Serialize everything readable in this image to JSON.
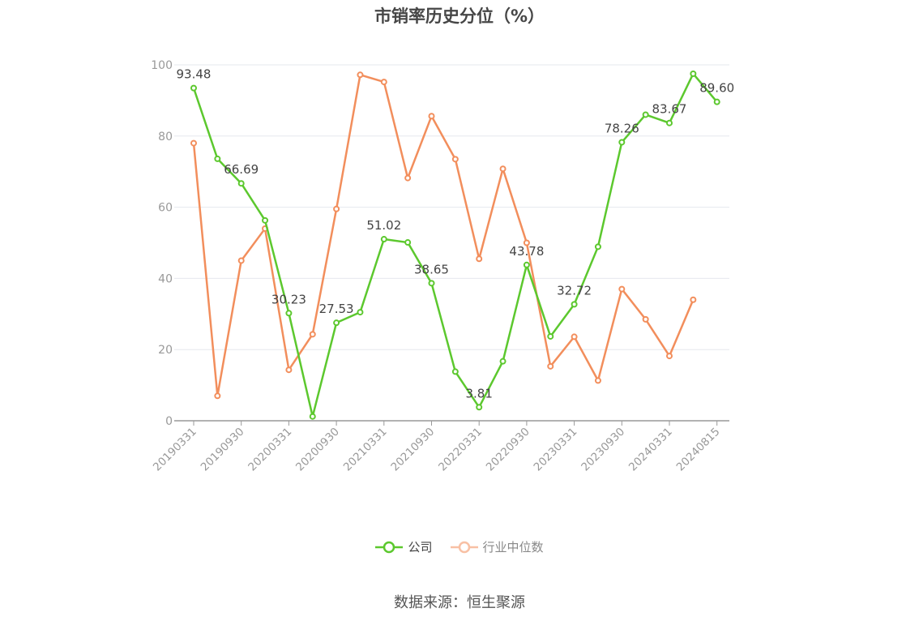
{
  "chart_data": {
    "type": "line",
    "title": "市销率历史分位（%）",
    "ylim": [
      0,
      100
    ],
    "yticks": [
      0,
      20,
      40,
      60,
      80,
      100
    ],
    "x_tick_labels": [
      "20190331",
      "20190930",
      "20200331",
      "20200930",
      "20210331",
      "20210930",
      "20220331",
      "20220930",
      "20230331",
      "20230930",
      "20240331",
      "20240815"
    ],
    "series": [
      {
        "name": "公司",
        "color": "#5cc82e",
        "values": [
          93.48,
          73.6,
          66.69,
          56.3,
          30.23,
          1.2,
          27.53,
          30.5,
          51.02,
          50.1,
          38.65,
          13.8,
          3.81,
          16.7,
          43.78,
          23.7,
          32.72,
          48.9,
          78.26,
          86.0,
          83.67,
          97.5,
          89.6
        ],
        "data_labels": [
          {
            "index": 0,
            "text": "93.48"
          },
          {
            "index": 2,
            "text": "66.69"
          },
          {
            "index": 4,
            "text": "30.23"
          },
          {
            "index": 6,
            "text": "27.53"
          },
          {
            "index": 8,
            "text": "51.02"
          },
          {
            "index": 10,
            "text": "38.65"
          },
          {
            "index": 12,
            "text": "3.81"
          },
          {
            "index": 14,
            "text": "43.78"
          },
          {
            "index": 16,
            "text": "32.72"
          },
          {
            "index": 18,
            "text": "78.26"
          },
          {
            "index": 20,
            "text": "83.67"
          },
          {
            "index": 22,
            "text": "89.60"
          }
        ]
      },
      {
        "name": "行业中位数",
        "color": "#f28e5c",
        "values": [
          78.0,
          7.0,
          45.0,
          54.0,
          14.3,
          24.3,
          59.5,
          97.2,
          95.2,
          68.2,
          85.6,
          73.5,
          45.5,
          70.8,
          50.0,
          15.3,
          23.6,
          11.3,
          37.0,
          28.5,
          18.2,
          34.0,
          null
        ]
      }
    ],
    "grid": true,
    "legend_position": "bottom-center"
  },
  "source": "数据来源：恒生聚源"
}
